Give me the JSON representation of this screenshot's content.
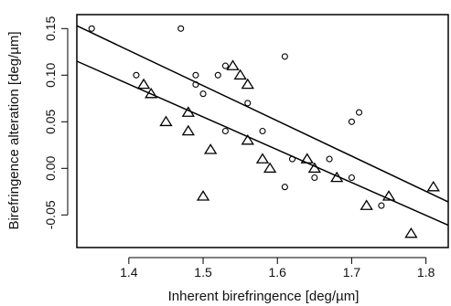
{
  "chart_data": {
    "type": "scatter",
    "title": "",
    "xlabel": "Inherent birefringence [deg/µm]",
    "ylabel": "Birefringence alteration [deg/µm]",
    "xlim": [
      1.33,
      1.83
    ],
    "ylim": [
      -0.085,
      0.165
    ],
    "x_ticks": [
      "1.4",
      "1.5",
      "1.6",
      "1.7",
      "1.8"
    ],
    "x_tick_values": [
      1.4,
      1.5,
      1.6,
      1.7,
      1.8
    ],
    "y_ticks": [
      "-0.05",
      "0.00",
      "0.05",
      "0.10",
      "0.15"
    ],
    "y_tick_values": [
      -0.05,
      0.0,
      0.05,
      0.1,
      0.15
    ],
    "grid": false,
    "legend": "none",
    "series": [
      {
        "marker": "circle",
        "points": [
          [
            1.35,
            0.15
          ],
          [
            1.41,
            0.1
          ],
          [
            1.47,
            0.15
          ],
          [
            1.49,
            0.1
          ],
          [
            1.49,
            0.09
          ],
          [
            1.5,
            0.08
          ],
          [
            1.52,
            0.1
          ],
          [
            1.53,
            0.11
          ],
          [
            1.53,
            0.04
          ],
          [
            1.56,
            0.07
          ],
          [
            1.58,
            0.04
          ],
          [
            1.61,
            0.12
          ],
          [
            1.61,
            -0.02
          ],
          [
            1.62,
            0.01
          ],
          [
            1.65,
            -0.01
          ],
          [
            1.67,
            0.01
          ],
          [
            1.7,
            0.05
          ],
          [
            1.71,
            0.06
          ],
          [
            1.7,
            -0.01
          ],
          [
            1.74,
            -0.04
          ]
        ]
      },
      {
        "marker": "triangle",
        "points": [
          [
            1.42,
            0.09
          ],
          [
            1.43,
            0.08
          ],
          [
            1.45,
            0.05
          ],
          [
            1.48,
            0.06
          ],
          [
            1.48,
            0.04
          ],
          [
            1.5,
            -0.03
          ],
          [
            1.51,
            0.02
          ],
          [
            1.54,
            0.11
          ],
          [
            1.55,
            0.1
          ],
          [
            1.56,
            0.09
          ],
          [
            1.56,
            0.03
          ],
          [
            1.58,
            0.01
          ],
          [
            1.59,
            0.0
          ],
          [
            1.64,
            0.01
          ],
          [
            1.65,
            0.0
          ],
          [
            1.68,
            -0.01
          ],
          [
            1.72,
            -0.04
          ],
          [
            1.75,
            -0.03
          ],
          [
            1.78,
            -0.07
          ],
          [
            1.81,
            -0.02
          ]
        ]
      }
    ],
    "lines": [
      {
        "x": [
          1.33,
          1.83
        ],
        "y": [
          0.153,
          -0.036
        ]
      },
      {
        "x": [
          1.33,
          1.83
        ],
        "y": [
          0.115,
          -0.061
        ]
      }
    ]
  }
}
